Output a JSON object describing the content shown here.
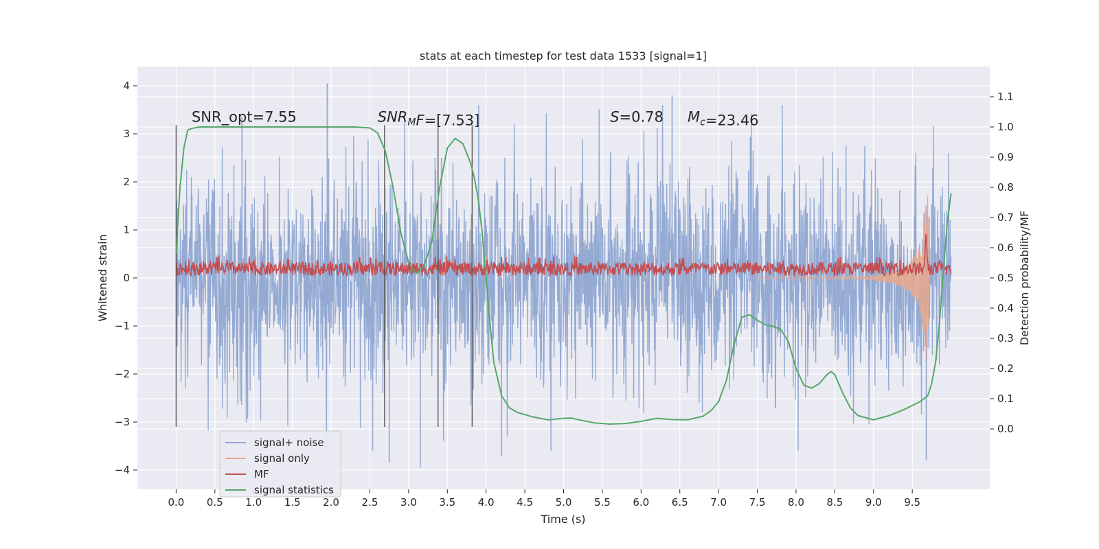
{
  "chart_data": {
    "type": "line",
    "title": "stats at each timestep for test data 1533 [signal=1]",
    "xlabel": "Time (s)",
    "ylabel": "Whitened strain",
    "y2label": "Detection probability/MF",
    "xlim": [
      -0.5,
      10.5
    ],
    "ylim": [
      -4.4,
      4.4
    ],
    "y2lim": [
      -0.2,
      1.2
    ],
    "x_ticks": [
      0.0,
      0.5,
      1.0,
      1.5,
      2.0,
      2.5,
      3.0,
      3.5,
      4.0,
      4.5,
      5.0,
      5.5,
      6.0,
      6.5,
      7.0,
      7.5,
      8.0,
      8.5,
      9.0,
      9.5
    ],
    "x_tick_labels": [
      "0.0",
      "0.5",
      "1.0",
      "1.5",
      "2.0",
      "2.5",
      "3.0",
      "3.5",
      "4.0",
      "4.5",
      "5.0",
      "5.5",
      "6.0",
      "6.5",
      "7.0",
      "7.5",
      "8.0",
      "8.5",
      "9.0",
      "9.5"
    ],
    "y_ticks": [
      -4,
      -3,
      -2,
      -1,
      0,
      1,
      2,
      3,
      4
    ],
    "y_tick_labels": [
      "−4",
      "−3",
      "−2",
      "−1",
      "0",
      "1",
      "2",
      "3",
      "4"
    ],
    "y2_ticks": [
      0.0,
      0.1,
      0.2,
      0.3,
      0.4,
      0.5,
      0.6,
      0.7,
      0.8,
      0.9,
      1.0,
      1.1
    ],
    "y2_tick_labels": [
      "0.0",
      "0.1",
      "0.2",
      "0.3",
      "0.4",
      "0.5",
      "0.6",
      "0.7",
      "0.8",
      "0.9",
      "1.0",
      "1.1"
    ],
    "grid": true,
    "legend_position": "lower-left",
    "annotations": [
      {
        "parts": [
          {
            "text": "SNR_opt=7.55"
          }
        ],
        "x": 0.2,
        "y": 3.25
      },
      {
        "parts": [
          {
            "text": "SNR",
            "italic": true
          },
          {
            "text": "M",
            "italic": true,
            "sub": true
          },
          {
            "text": "F",
            "italic": true
          },
          {
            "text": "=[7.53]"
          }
        ],
        "x": 2.6,
        "y": 3.25
      },
      {
        "parts": [
          {
            "text": "S",
            "italic": true
          },
          {
            "text": "=0.78"
          }
        ],
        "x": 5.6,
        "y": 3.25
      },
      {
        "parts": [
          {
            "text": "M",
            "italic": true
          },
          {
            "text": "c",
            "italic": true,
            "sub": true
          },
          {
            "text": "=23.46"
          }
        ],
        "x": 6.6,
        "y": 3.25
      }
    ],
    "vertical_lines": {
      "x": [
        0.0,
        2.69,
        3.38,
        3.82
      ],
      "ymin": -3.1,
      "ymax": 3.18,
      "color": "#555555"
    },
    "series": [
      {
        "name": "signal+ noise",
        "color": "#8fa6d1",
        "axis": "left",
        "description_points": {
          "x_range": [
            0.0,
            10.0
          ],
          "typical_amplitude": 2.0,
          "peak_max": 4.05,
          "peak_min": -3.95
        }
      },
      {
        "name": "signal only",
        "color": "#e8a88b",
        "axis": "left",
        "x": [
          9.0,
          9.2,
          9.35,
          9.45,
          9.55,
          9.62,
          9.67,
          9.7,
          9.72
        ],
        "envelope": [
          0.05,
          0.1,
          0.18,
          0.3,
          0.5,
          0.8,
          1.5,
          1.8,
          0.0
        ]
      },
      {
        "name": "MF",
        "color": "#c44e52",
        "axis": "right",
        "x_range": [
          0.0,
          10.0
        ],
        "baseline": 0.53,
        "peaks": [
          {
            "x": 9.68,
            "y": 0.64
          }
        ]
      },
      {
        "name": "signal statistics",
        "color": "#55a868",
        "axis": "right",
        "x": [
          0.0,
          0.05,
          0.1,
          0.15,
          0.2,
          0.3,
          0.5,
          1.0,
          1.5,
          2.0,
          2.3,
          2.5,
          2.6,
          2.7,
          2.8,
          2.9,
          3.0,
          3.05,
          3.1,
          3.2,
          3.3,
          3.4,
          3.5,
          3.6,
          3.7,
          3.8,
          3.85,
          3.9,
          3.95,
          4.0,
          4.05,
          4.1,
          4.2,
          4.3,
          4.4,
          4.6,
          4.8,
          5.0,
          5.1,
          5.2,
          5.4,
          5.6,
          5.8,
          6.0,
          6.2,
          6.4,
          6.6,
          6.8,
          6.9,
          7.0,
          7.1,
          7.2,
          7.3,
          7.4,
          7.5,
          7.6,
          7.7,
          7.8,
          7.9,
          8.0,
          8.1,
          8.2,
          8.3,
          8.4,
          8.45,
          8.5,
          8.6,
          8.7,
          8.8,
          9.0,
          9.2,
          9.4,
          9.6,
          9.7,
          9.75,
          9.8,
          9.85,
          9.9,
          9.95,
          10.0
        ],
        "y": [
          0.58,
          0.8,
          0.93,
          0.99,
          0.995,
          1.0,
          1.0,
          1.0,
          1.0,
          1.0,
          1.0,
          0.997,
          0.98,
          0.92,
          0.8,
          0.65,
          0.55,
          0.53,
          0.515,
          0.54,
          0.62,
          0.8,
          0.93,
          0.962,
          0.945,
          0.88,
          0.83,
          0.76,
          0.65,
          0.5,
          0.35,
          0.22,
          0.11,
          0.07,
          0.055,
          0.04,
          0.03,
          0.035,
          0.036,
          0.03,
          0.02,
          0.016,
          0.018,
          0.025,
          0.035,
          0.031,
          0.03,
          0.042,
          0.06,
          0.09,
          0.16,
          0.28,
          0.37,
          0.378,
          0.36,
          0.345,
          0.34,
          0.33,
          0.29,
          0.2,
          0.145,
          0.135,
          0.15,
          0.18,
          0.19,
          0.18,
          0.12,
          0.07,
          0.044,
          0.03,
          0.044,
          0.065,
          0.09,
          0.11,
          0.15,
          0.22,
          0.35,
          0.52,
          0.68,
          0.78
        ]
      }
    ]
  }
}
